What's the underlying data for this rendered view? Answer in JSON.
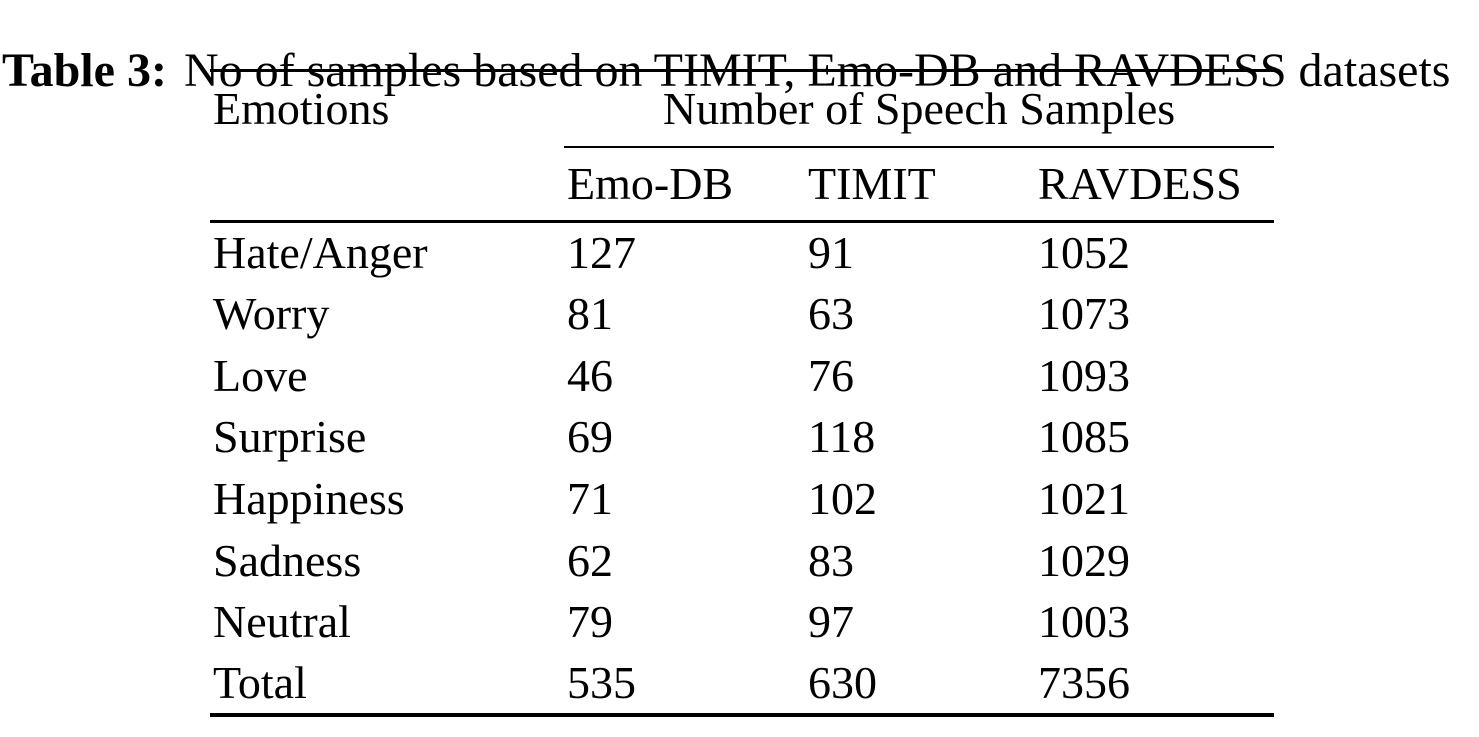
{
  "caption": {
    "label": "Table 3:",
    "text": "No of samples based on TIMIT, Emo-DB and RAVDESS datasets"
  },
  "table": {
    "columns": {
      "emotions": "Emotions",
      "group": "Number of Speech Samples",
      "sub": [
        "Emo-DB",
        "TIMIT",
        "RAVDESS"
      ]
    },
    "rows": [
      {
        "emotion": "Hate/Anger",
        "emo_db": "127",
        "timit": "91",
        "ravdess": "1052"
      },
      {
        "emotion": "Worry",
        "emo_db": "81",
        "timit": "63",
        "ravdess": "1073"
      },
      {
        "emotion": "Love",
        "emo_db": "46",
        "timit": "76",
        "ravdess": "1093"
      },
      {
        "emotion": "Surprise",
        "emo_db": "69",
        "timit": "118",
        "ravdess": "1085"
      },
      {
        "emotion": "Happiness",
        "emo_db": "71",
        "timit": "102",
        "ravdess": "1021"
      },
      {
        "emotion": "Sadness",
        "emo_db": "62",
        "timit": "83",
        "ravdess": "1029"
      },
      {
        "emotion": "Neutral",
        "emo_db": "79",
        "timit": "97",
        "ravdess": "1003"
      },
      {
        "emotion": "Total",
        "emo_db": "535",
        "timit": "630",
        "ravdess": "7356"
      }
    ],
    "colors": {
      "text": "#000000",
      "rule": "#000000",
      "background": "#ffffff"
    }
  }
}
